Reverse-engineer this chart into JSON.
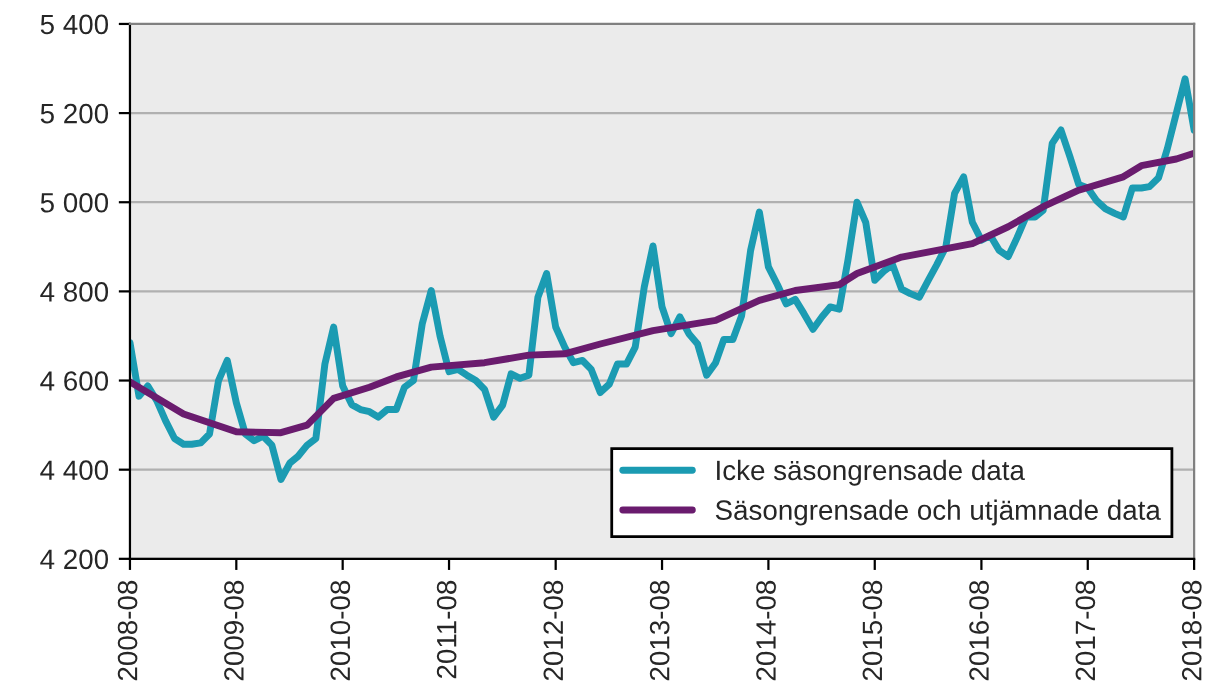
{
  "chart_data": {
    "type": "line",
    "series": [
      {
        "name": "Icke säsongrensade data",
        "color": "#1b9bb2",
        "x": [
          "2008-08",
          "2008-09",
          "2008-10",
          "2008-11",
          "2008-12",
          "2009-01",
          "2009-02",
          "2009-03",
          "2009-04",
          "2009-05",
          "2009-06",
          "2009-07",
          "2009-08",
          "2009-09",
          "2009-10",
          "2009-11",
          "2009-12",
          "2010-01",
          "2010-02",
          "2010-03",
          "2010-04",
          "2010-05",
          "2010-06",
          "2010-07",
          "2010-08",
          "2010-09",
          "2010-10",
          "2010-11",
          "2010-12",
          "2011-01",
          "2011-02",
          "2011-03",
          "2011-04",
          "2011-05",
          "2011-06",
          "2011-07",
          "2011-08",
          "2011-09",
          "2011-10",
          "2011-11",
          "2011-12",
          "2012-01",
          "2012-02",
          "2012-03",
          "2012-04",
          "2012-05",
          "2012-06",
          "2012-07",
          "2012-08",
          "2012-09",
          "2012-10",
          "2012-11",
          "2012-12",
          "2013-01",
          "2013-02",
          "2013-03",
          "2013-04",
          "2013-05",
          "2013-06",
          "2013-07",
          "2013-08",
          "2013-09",
          "2013-10",
          "2013-11",
          "2013-12",
          "2014-01",
          "2014-02",
          "2014-03",
          "2014-04",
          "2014-05",
          "2014-06",
          "2014-07",
          "2014-08",
          "2014-09",
          "2014-10",
          "2014-11",
          "2014-12",
          "2015-01",
          "2015-02",
          "2015-03",
          "2015-04",
          "2015-05",
          "2015-06",
          "2015-07",
          "2015-08",
          "2015-09",
          "2015-10",
          "2015-11",
          "2015-12",
          "2016-01",
          "2016-02",
          "2016-03",
          "2016-04",
          "2016-05",
          "2016-06",
          "2016-07",
          "2016-08",
          "2016-09",
          "2016-10",
          "2016-11",
          "2016-12",
          "2017-01",
          "2017-02",
          "2017-03",
          "2017-04",
          "2017-05",
          "2017-06",
          "2017-07",
          "2017-08",
          "2017-09",
          "2017-10",
          "2017-11",
          "2017-12",
          "2018-01",
          "2018-02",
          "2018-03",
          "2018-04",
          "2018-05",
          "2018-06",
          "2018-07",
          "2018-08"
        ],
        "values": [
          4685,
          4565,
          4588,
          4555,
          4510,
          4470,
          4457,
          4457,
          4460,
          4480,
          4600,
          4645,
          4550,
          4480,
          4465,
          4475,
          4455,
          4378,
          4415,
          4430,
          4455,
          4470,
          4637,
          4720,
          4588,
          4546,
          4535,
          4530,
          4518,
          4535,
          4535,
          4585,
          4600,
          4727,
          4802,
          4700,
          4620,
          4625,
          4612,
          4600,
          4580,
          4518,
          4545,
          4615,
          4605,
          4612,
          4787,
          4840,
          4720,
          4675,
          4640,
          4645,
          4625,
          4573,
          4592,
          4637,
          4637,
          4675,
          4810,
          4902,
          4765,
          4705,
          4743,
          4705,
          4682,
          4612,
          4640,
          4692,
          4692,
          4745,
          4892,
          4978,
          4855,
          4815,
          4772,
          4782,
          4750,
          4715,
          4743,
          4765,
          4760,
          4870,
          5000,
          4955,
          4825,
          4845,
          4860,
          4805,
          4795,
          4787,
          4825,
          4860,
          4900,
          5020,
          5057,
          4955,
          4915,
          4925,
          4892,
          4878,
          4920,
          4967,
          4967,
          4982,
          5132,
          5162,
          5102,
          5040,
          5032,
          5003,
          4985,
          4975,
          4967,
          5032,
          5032,
          5035,
          5055,
          5120,
          5200,
          5277,
          5162
        ]
      },
      {
        "name": "Säsongrensade och utjämnade data",
        "color": "#6a1c6e",
        "x": [
          "2008-08",
          "2009-02",
          "2009-08",
          "2010-01",
          "2010-04",
          "2010-07",
          "2010-11",
          "2011-02",
          "2011-06",
          "2011-12",
          "2012-05",
          "2012-09",
          "2013-01",
          "2013-07",
          "2014-02",
          "2014-07",
          "2014-11",
          "2015-04",
          "2015-06",
          "2015-11",
          "2016-07",
          "2016-11",
          "2017-03",
          "2017-07",
          "2017-12",
          "2018-02",
          "2018-06",
          "2018-08"
        ],
        "values": [
          4597,
          4525,
          4485,
          4483,
          4500,
          4560,
          4585,
          4608,
          4630,
          4640,
          4657,
          4660,
          4682,
          4712,
          4735,
          4780,
          4802,
          4815,
          4840,
          4877,
          4907,
          4945,
          4990,
          5027,
          5057,
          5082,
          5097,
          5110
        ]
      }
    ],
    "xlim": [
      "2008-08",
      "2018-08"
    ],
    "xticks": [
      "2008-08",
      "2009-08",
      "2010-08",
      "2011-08",
      "2012-08",
      "2013-08",
      "2014-08",
      "2015-08",
      "2016-08",
      "2017-08",
      "2018-08"
    ],
    "ylim": [
      4200,
      5400
    ],
    "yticks": [
      {
        "value": 4200,
        "label": "4 200"
      },
      {
        "value": 4400,
        "label": "4 400"
      },
      {
        "value": 4600,
        "label": "4 600"
      },
      {
        "value": 4800,
        "label": "4 800"
      },
      {
        "value": 5000,
        "label": "5 000"
      },
      {
        "value": 5200,
        "label": "5 200"
      },
      {
        "value": 5400,
        "label": "5 400"
      }
    ],
    "grid": "y",
    "legend": "bottom right",
    "marker": "none",
    "line_style": "solid"
  }
}
